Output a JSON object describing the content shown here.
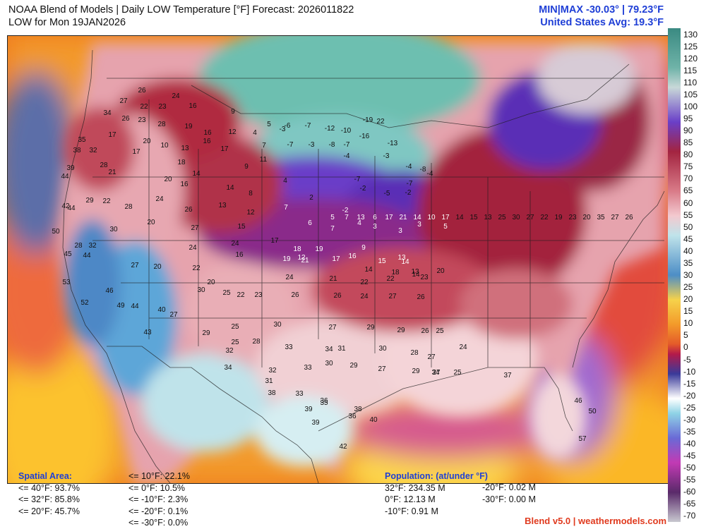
{
  "header": {
    "title_line1": "NOAA Blend of Models | Daily LOW Temperature [°F] Forecast: 2026011822",
    "title_line2": "LOW for Mon 19JAN2026",
    "minmax": "MIN|MAX -30.03°  | 79.23°F",
    "us_avg": "United States Avg: 19.3°F"
  },
  "legend": {
    "labels": [
      "130",
      "125",
      "120",
      "115",
      "110",
      "105",
      "100",
      "95",
      "90",
      "85",
      "80",
      "75",
      "70",
      "65",
      "60",
      "55",
      "50",
      "45",
      "40",
      "35",
      "30",
      "25",
      "20",
      "15",
      "10",
      "5",
      "0",
      "-5",
      "-10",
      "-15",
      "-20",
      "-25",
      "-30",
      "-35",
      "-40",
      "-45",
      "-50",
      "-55",
      "-60",
      "-65",
      "-70"
    ]
  },
  "spatial_area": {
    "title": "Spatial Area:",
    "col1": [
      "<= 40°F: 93.7%",
      "<= 32°F: 85.8%",
      "<= 20°F: 45.7%"
    ],
    "col2": [
      "<= 10°F: 22.1%",
      "<= 0°F: 10.5%",
      "<= -10°F: 2.3%",
      "<= -20°F: 0.1%",
      "<= -30°F: 0.0%"
    ]
  },
  "population": {
    "title": "Population: (at/under °F)",
    "col1": [
      "32°F: 234.35 M",
      "0°F: 12.13 M",
      "-10°F: 0.91 M"
    ],
    "col2": [
      "-20°F: 0.02 M",
      "-30°F: 0.00 M"
    ]
  },
  "credit": "Blend v5.0 | weathermodels.com",
  "map_values": [
    {
      "t": "26"
    },
    {
      "t": "24"
    },
    {
      "t": "16"
    },
    {
      "t": "9"
    },
    {
      "t": "5"
    },
    {
      "t": "-3"
    },
    {
      "t": "-6"
    },
    {
      "t": "-7"
    },
    {
      "t": "-12"
    },
    {
      "t": "-10"
    },
    {
      "t": "-19"
    },
    {
      "t": "22"
    },
    {
      "t": "27"
    },
    {
      "t": "22"
    },
    {
      "t": "23"
    },
    {
      "t": "19"
    },
    {
      "t": "16"
    },
    {
      "t": "12"
    },
    {
      "t": "4"
    },
    {
      "t": "-7"
    },
    {
      "t": "-3"
    },
    {
      "t": "-8"
    },
    {
      "t": "-7"
    },
    {
      "t": "-16"
    },
    {
      "t": "-13"
    },
    {
      "t": "34"
    },
    {
      "t": "26"
    },
    {
      "t": "23"
    },
    {
      "t": "28"
    },
    {
      "t": "13"
    },
    {
      "t": "16"
    },
    {
      "t": "17"
    },
    {
      "t": "7"
    },
    {
      "t": "11"
    },
    {
      "t": "-4"
    },
    {
      "t": "-3"
    },
    {
      "t": "-4"
    },
    {
      "t": "-7"
    },
    {
      "t": "-8"
    },
    {
      "t": "-4"
    },
    {
      "t": "35"
    },
    {
      "t": "17"
    },
    {
      "t": "20"
    },
    {
      "t": "10"
    },
    {
      "t": "14"
    },
    {
      "t": "9"
    },
    {
      "t": "4"
    },
    {
      "t": "-7"
    },
    {
      "t": "-2"
    },
    {
      "t": "-5"
    },
    {
      "t": "-2"
    },
    {
      "t": "38"
    },
    {
      "t": "32"
    },
    {
      "t": "17"
    },
    {
      "t": "18"
    },
    {
      "t": "14"
    },
    {
      "t": "8"
    },
    {
      "t": "7"
    },
    {
      "t": "2"
    },
    {
      "t": "-2"
    },
    {
      "t": "3"
    },
    {
      "t": "3"
    },
    {
      "t": "39"
    },
    {
      "t": "28"
    },
    {
      "t": "21"
    },
    {
      "t": "20"
    },
    {
      "t": "16"
    },
    {
      "t": "13"
    },
    {
      "t": "12"
    },
    {
      "t": "6"
    },
    {
      "t": "7"
    },
    {
      "t": "4"
    },
    {
      "t": "3"
    },
    {
      "t": "5"
    },
    {
      "t": "44"
    },
    {
      "t": "22"
    },
    {
      "t": "28"
    },
    {
      "t": "24"
    },
    {
      "t": "26"
    },
    {
      "t": "15"
    },
    {
      "t": "17"
    },
    {
      "t": "12"
    },
    {
      "t": "17"
    },
    {
      "t": "9"
    },
    {
      "t": "13"
    },
    {
      "t": "42"
    },
    {
      "t": "44"
    },
    {
      "t": "29"
    },
    {
      "t": "20"
    },
    {
      "t": "27"
    },
    {
      "t": "24"
    },
    {
      "t": "18"
    },
    {
      "t": "19"
    },
    {
      "t": "16"
    },
    {
      "t": "15"
    },
    {
      "t": "14"
    },
    {
      "t": "13"
    },
    {
      "t": "50"
    },
    {
      "t": "30"
    },
    {
      "t": "24"
    },
    {
      "t": "20"
    },
    {
      "t": "16"
    },
    {
      "t": "19"
    },
    {
      "t": "21"
    },
    {
      "t": "14"
    },
    {
      "t": "18"
    },
    {
      "t": "14"
    },
    {
      "t": "20"
    },
    {
      "t": "45"
    },
    {
      "t": "44"
    },
    {
      "t": "27"
    },
    {
      "t": "20"
    },
    {
      "t": "22"
    },
    {
      "t": "24"
    },
    {
      "t": "21"
    },
    {
      "t": "22"
    },
    {
      "t": "22"
    },
    {
      "t": "23"
    },
    {
      "t": "53"
    },
    {
      "t": "46"
    },
    {
      "t": "30"
    },
    {
      "t": "25"
    },
    {
      "t": "22"
    },
    {
      "t": "23"
    },
    {
      "t": "26"
    },
    {
      "t": "26"
    },
    {
      "t": "24"
    },
    {
      "t": "27"
    },
    {
      "t": "26"
    },
    {
      "t": "52"
    },
    {
      "t": "49"
    },
    {
      "t": "44"
    },
    {
      "t": "40"
    },
    {
      "t": "27"
    },
    {
      "t": "25"
    },
    {
      "t": "30"
    },
    {
      "t": "27"
    },
    {
      "t": "29"
    },
    {
      "t": "29"
    },
    {
      "t": "26"
    },
    {
      "t": "25"
    },
    {
      "t": "43"
    },
    {
      "t": "29"
    },
    {
      "t": "32"
    },
    {
      "t": "25"
    },
    {
      "t": "28"
    },
    {
      "t": "33"
    },
    {
      "t": "34"
    },
    {
      "t": "31"
    },
    {
      "t": "30"
    },
    {
      "t": "28"
    },
    {
      "t": "27"
    },
    {
      "t": "24"
    },
    {
      "t": "34"
    },
    {
      "t": "32"
    },
    {
      "t": "33"
    },
    {
      "t": "30"
    },
    {
      "t": "29"
    },
    {
      "t": "27"
    },
    {
      "t": "29"
    },
    {
      "t": "34"
    },
    {
      "t": "25"
    },
    {
      "t": "38"
    },
    {
      "t": "31"
    },
    {
      "t": "33"
    },
    {
      "t": "36"
    },
    {
      "t": "38"
    },
    {
      "t": "36"
    },
    {
      "t": "40"
    },
    {
      "t": "27"
    },
    {
      "t": "37"
    },
    {
      "t": "46"
    },
    {
      "t": "35"
    },
    {
      "t": "39"
    },
    {
      "t": "39"
    },
    {
      "t": "42"
    },
    {
      "t": "50"
    },
    {
      "t": "57"
    },
    {
      "t": "5"
    },
    {
      "t": "7"
    },
    {
      "t": "13"
    },
    {
      "t": "6"
    },
    {
      "t": "17"
    },
    {
      "t": "21"
    },
    {
      "t": "14"
    },
    {
      "t": "10"
    },
    {
      "t": "17"
    },
    {
      "t": "14"
    },
    {
      "t": "15"
    },
    {
      "t": "13"
    },
    {
      "t": "25"
    },
    {
      "t": "30"
    },
    {
      "t": "27"
    },
    {
      "t": "22"
    },
    {
      "t": "19"
    },
    {
      "t": "23"
    },
    {
      "t": "20"
    },
    {
      "t": "35"
    },
    {
      "t": "27"
    },
    {
      "t": "26"
    },
    {
      "t": "28"
    },
    {
      "t": "32"
    }
  ]
}
